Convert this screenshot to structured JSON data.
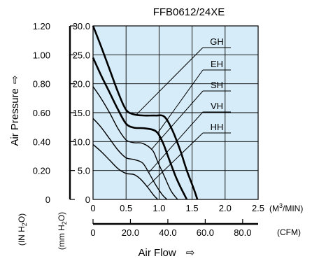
{
  "chart_data": {
    "type": "line",
    "title": "FFB0612/24XE",
    "xlabel": "Air Flow",
    "xlabel_arrow": "⇨",
    "ylabel": "Air Pressure",
    "ylabel_arrow": "⇨",
    "x_unit": "(M3/MIN)",
    "x2_unit": "(CFM)",
    "y_unit_inh2o": "(IN H2O)",
    "y_unit_mmh2o": "(mm H2O)",
    "grid": true,
    "plot_background": "#d6ecf8",
    "line_color": "#000000",
    "xlim": [
      0,
      2.5
    ],
    "ylim": [
      0,
      30
    ],
    "x_ticks": [
      "0",
      "0.5",
      "1.0",
      "1.5",
      "2.0",
      "2.5"
    ],
    "x_tick_values": [
      0,
      0.5,
      1.0,
      1.5,
      2.0,
      2.5
    ],
    "x2_ticks": [
      "0",
      "20.0",
      "40.0",
      "60.0",
      "80.0"
    ],
    "x2_tick_values": [
      0,
      20,
      40,
      60,
      80
    ],
    "y_ticks": [
      "0",
      "5.0",
      "10.0",
      "15.0",
      "20.0",
      "25.0",
      "30.0"
    ],
    "y_tick_values": [
      0,
      5,
      10,
      15,
      20,
      25,
      30
    ],
    "y2_ticks": [
      "0",
      "0.20",
      "0.40",
      "0.60",
      "0.80",
      "1.00",
      "1.20"
    ],
    "y2_tick_values": [
      0,
      0.2,
      0.4,
      0.6,
      0.8,
      1.0,
      1.2
    ],
    "series": [
      {
        "name": "GH",
        "thick": true,
        "x": [
          0,
          0.12,
          0.25,
          0.38,
          0.5,
          0.62,
          0.78,
          0.95,
          1.08,
          1.2,
          1.32,
          1.42,
          1.52,
          1.58
        ],
        "y": [
          30,
          26.5,
          22.5,
          18.5,
          15.5,
          14.7,
          14.5,
          14.5,
          14.3,
          12,
          8.5,
          5,
          2,
          0
        ]
      },
      {
        "name": "EH",
        "thick": true,
        "x": [
          0,
          0.12,
          0.25,
          0.38,
          0.5,
          0.62,
          0.78,
          0.95,
          1.05,
          1.15,
          1.25,
          1.33,
          1.42
        ],
        "y": [
          24.5,
          21.5,
          18.5,
          15.5,
          13.1,
          12.4,
          12.3,
          11.8,
          10,
          7,
          4,
          2,
          0
        ]
      },
      {
        "name": "SH",
        "thick": false,
        "x": [
          0,
          0.12,
          0.25,
          0.38,
          0.5,
          0.62,
          0.75,
          0.9,
          0.98,
          1.08,
          1.18,
          1.28
        ],
        "y": [
          19.5,
          17.5,
          15,
          12.2,
          10.3,
          9.8,
          9.7,
          8.5,
          6.5,
          4,
          1.5,
          0
        ]
      },
      {
        "name": "VH",
        "thick": false,
        "x": [
          0,
          0.12,
          0.25,
          0.38,
          0.5,
          0.62,
          0.75,
          0.85,
          0.95,
          1.05,
          1.12
        ],
        "y": [
          14,
          12.5,
          10.5,
          8.5,
          7.2,
          6.9,
          6.3,
          4.5,
          2.5,
          0.8,
          0
        ]
      },
      {
        "name": "HH",
        "thick": false,
        "x": [
          0,
          0.12,
          0.25,
          0.38,
          0.5,
          0.62,
          0.72,
          0.82,
          0.92,
          0.98
        ],
        "y": [
          9.5,
          8.3,
          6.8,
          5.3,
          4.5,
          4.3,
          3.5,
          2.2,
          0.7,
          0
        ]
      }
    ],
    "annotations": [
      {
        "series": "GH",
        "label": "GH",
        "x": 0.65,
        "y": 14.6
      },
      {
        "series": "EH",
        "label": "EH",
        "x": 0.98,
        "y": 11.5
      },
      {
        "series": "SH",
        "label": "SH",
        "x": 0.88,
        "y": 8.6
      },
      {
        "series": "VH",
        "label": "VH",
        "x": 0.84,
        "y": 4.6
      },
      {
        "series": "HH",
        "label": "HH",
        "x": 0.82,
        "y": 2.2
      }
    ]
  }
}
